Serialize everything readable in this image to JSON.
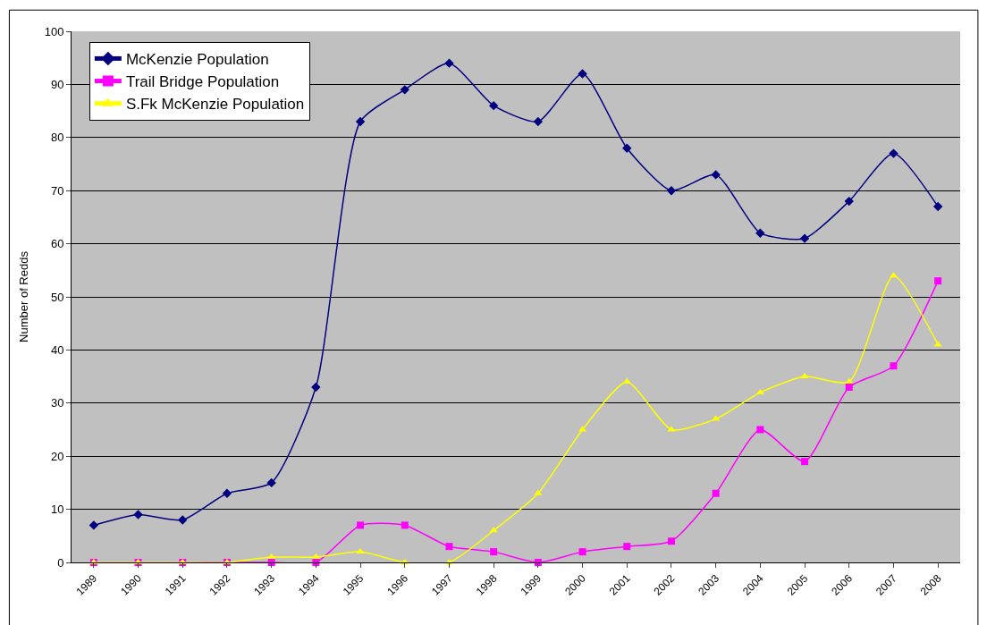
{
  "chart_data": {
    "type": "line",
    "ylabel": "Number of Redds",
    "categories": [
      "1989",
      "1990",
      "1991",
      "1992",
      "1993",
      "1994",
      "1995",
      "1996",
      "1997",
      "1998",
      "1999",
      "2000",
      "2001",
      "2002",
      "2003",
      "2004",
      "2005",
      "2006",
      "2007",
      "2008"
    ],
    "series": [
      {
        "name": "McKenzie Population",
        "color": "#000080",
        "marker": "diamond",
        "values": [
          7,
          9,
          8,
          13,
          15,
          33,
          83,
          89,
          94,
          86,
          83,
          92,
          78,
          70,
          73,
          62,
          61,
          68,
          77,
          67
        ]
      },
      {
        "name": "Trail Bridge Population",
        "color": "#ff00ff",
        "marker": "square",
        "values": [
          0,
          0,
          0,
          0,
          0,
          0,
          7,
          7,
          3,
          2,
          0,
          2,
          3,
          4,
          13,
          25,
          19,
          33,
          37,
          53
        ]
      },
      {
        "name": "S.Fk McKenzie Population",
        "color": "#ffff00",
        "marker": "triangle",
        "values": [
          0,
          0,
          0,
          0,
          1,
          1,
          2,
          0,
          0,
          6,
          13,
          25,
          34,
          25,
          27,
          32,
          35,
          34,
          54,
          41
        ]
      }
    ],
    "ylim": [
      0,
      100
    ],
    "yticks": [
      0,
      10,
      20,
      30,
      40,
      50,
      60,
      70,
      80,
      90,
      100
    ],
    "grid": "y",
    "legend": "top left"
  }
}
